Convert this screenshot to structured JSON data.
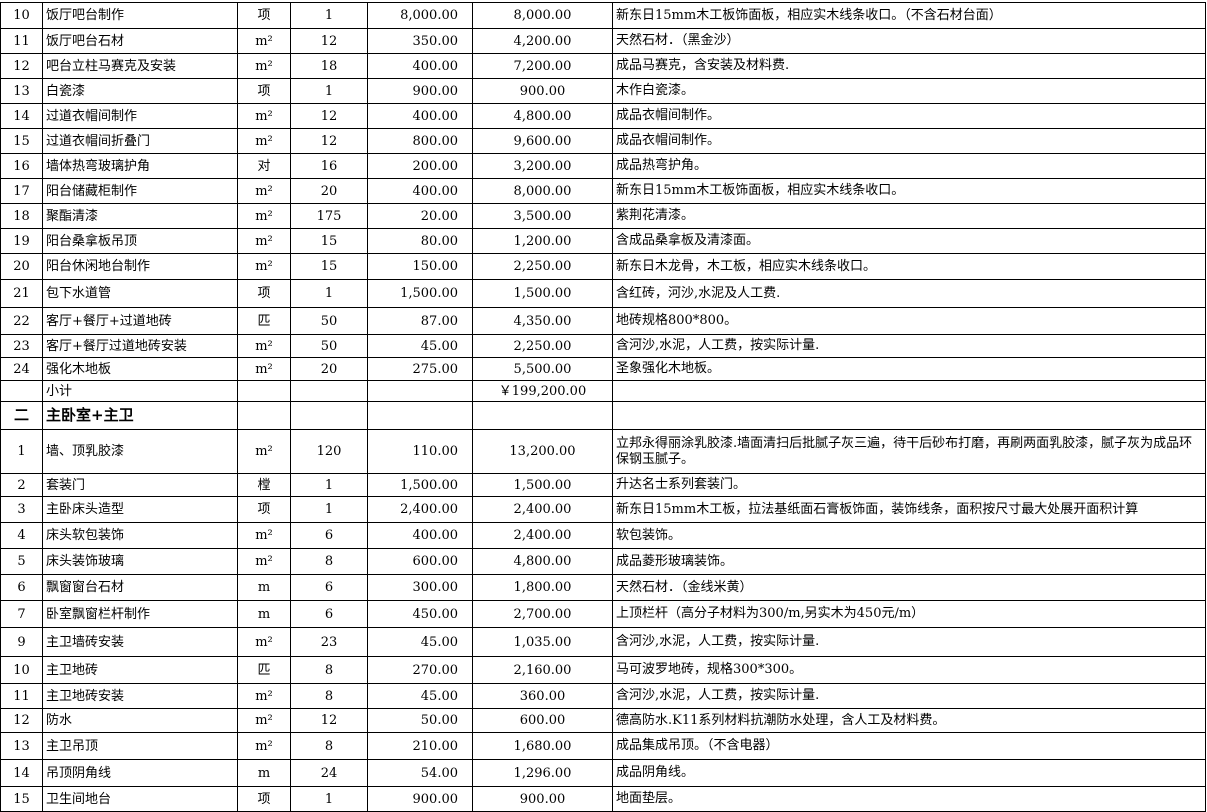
{
  "rows": [
    {
      "no": "10",
      "name": "饭厅吧台制作",
      "unit": "项",
      "qty": "1",
      "price": "8,000.00",
      "total": "8,000.00",
      "remark": "新东日15mm木工板饰面板，相应实木线条收口。（不含石材台面）"
    },
    {
      "no": "11",
      "name": "饭厅吧台石材",
      "unit": "m²",
      "qty": "12",
      "price": "350.00",
      "total": "4,200.00",
      "remark": "天然石材．（黑金沙）"
    },
    {
      "no": "12",
      "name": "吧台立柱马赛克及安装",
      "unit": "m²",
      "qty": "18",
      "price": "400.00",
      "total": "7,200.00",
      "remark": "成品马赛克，含安装及材料费."
    },
    {
      "no": "13",
      "name": "白瓷漆",
      "unit": "项",
      "qty": "1",
      "price": "900.00",
      "total": "900.00",
      "remark": "木作白瓷漆。"
    },
    {
      "no": "14",
      "name": "过道衣帽间制作",
      "unit": "m²",
      "qty": "12",
      "price": "400.00",
      "total": "4,800.00",
      "remark": "成品衣帽间制作。"
    },
    {
      "no": "15",
      "name": "过道衣帽间折叠门",
      "unit": "m²",
      "qty": "12",
      "price": "800.00",
      "total": "9,600.00",
      "remark": "成品衣帽间制作。"
    },
    {
      "no": "16",
      "name": "墙体热弯玻璃护角",
      "unit": "对",
      "qty": "16",
      "price": "200.00",
      "total": "3,200.00",
      "remark": "成品热弯护角。"
    },
    {
      "no": "17",
      "name": "阳台储藏柜制作",
      "unit": "m²",
      "qty": "20",
      "price": "400.00",
      "total": "8,000.00",
      "remark": "新东日15mm木工板饰面板，相应实木线条收口。"
    },
    {
      "no": "18",
      "name": "聚酯清漆",
      "unit": "m²",
      "qty": "175",
      "price": "20.00",
      "total": "3,500.00",
      "remark": "紫荆花清漆。"
    },
    {
      "no": "19",
      "name": "阳台桑拿板吊顶",
      "unit": "m²",
      "qty": "15",
      "price": "80.00",
      "total": "1,200.00",
      "remark": "含成品桑拿板及清漆面。"
    },
    {
      "no": "20",
      "name": "阳台休闲地台制作",
      "unit": "m²",
      "qty": "15",
      "price": "150.00",
      "total": "2,250.00",
      "remark": "新东日木龙骨，木工板，相应实木线条收口。"
    },
    {
      "no": "21",
      "name": "包下水道管",
      "unit": "项",
      "qty": "1",
      "price": "1,500.00",
      "total": "1,500.00",
      "remark": "含红砖，河沙,水泥及人工费."
    },
    {
      "no": "22",
      "name": "客厅+餐厅+过道地砖",
      "unit": "匹",
      "qty": "50",
      "price": "87.00",
      "total": "4,350.00",
      "remark": "地砖规格800*800。"
    },
    {
      "no": "23",
      "name": "客厅+餐厅过道地砖安装",
      "unit": "m²",
      "qty": "50",
      "price": "45.00",
      "total": "2,250.00",
      "remark": "含河沙,水泥，人工费，按实际计量."
    },
    {
      "no": "24",
      "name": "强化木地板",
      "unit": "m²",
      "qty": "20",
      "price": "275.00",
      "total": "5,500.00",
      "remark": "圣象强化木地板。"
    },
    {
      "no": "",
      "name": "小计",
      "unit": "",
      "qty": "",
      "price": "",
      "total": "￥199,200.00",
      "remark": ""
    },
    {
      "no": "二",
      "name": "主卧室+主卫",
      "unit": "",
      "qty": "",
      "price": "",
      "total": "",
      "remark": "",
      "section": true
    },
    {
      "no": "1",
      "name": "墙、顶乳胶漆",
      "unit": "m²",
      "qty": "120",
      "price": "110.00",
      "total": "13,200.00",
      "remark": "立邦永得丽涂乳胶漆.墙面清扫后批腻子灰三遍，待干后砂布打磨，再刷两面乳胶漆，腻子灰为成品环保钢玉腻子。"
    },
    {
      "no": "2",
      "name": "套装门",
      "unit": "樘",
      "qty": "1",
      "price": "1,500.00",
      "total": "1,500.00",
      "remark": "升达名士系列套装门。"
    },
    {
      "no": "3",
      "name": "主卧床头造型",
      "unit": "项",
      "qty": "1",
      "price": "2,400.00",
      "total": "2,400.00",
      "remark": "新东日15mm木工板，拉法基纸面石膏板饰面，装饰线条，面积按尺寸最大处展开面积计算"
    },
    {
      "no": "4",
      "name": "床头软包装饰",
      "unit": "m²",
      "qty": "6",
      "price": "400.00",
      "total": "2,400.00",
      "remark": "软包装饰。"
    },
    {
      "no": "5",
      "name": "床头装饰玻璃",
      "unit": "m²",
      "qty": "8",
      "price": "600.00",
      "total": "4,800.00",
      "remark": "成品菱形玻璃装饰。"
    },
    {
      "no": "6",
      "name": "飘窗窗台石材",
      "unit": "m",
      "qty": "6",
      "price": "300.00",
      "total": "1,800.00",
      "remark": "天然石材．（金线米黄）"
    },
    {
      "no": "7",
      "name": "卧室飘窗栏杆制作",
      "unit": "m",
      "qty": "6",
      "price": "450.00",
      "total": "2,700.00",
      "remark": "上顶栏杆（高分子材料为300/m,另实木为450元/m）"
    },
    {
      "no": "9",
      "name": "主卫墙砖安装",
      "unit": "m²",
      "qty": "23",
      "price": "45.00",
      "total": "1,035.00",
      "remark": "含河沙,水泥，人工费，按实际计量."
    },
    {
      "no": "10",
      "name": "主卫地砖",
      "unit": "匹",
      "qty": "8",
      "price": "270.00",
      "total": "2,160.00",
      "remark": "马可波罗地砖，规格300*300。"
    },
    {
      "no": "11",
      "name": "主卫地砖安装",
      "unit": "m²",
      "qty": "8",
      "price": "45.00",
      "total": "360.00",
      "remark": "含河沙,水泥，人工费，按实际计量."
    },
    {
      "no": "12",
      "name": "防水",
      "unit": "m²",
      "qty": "12",
      "price": "50.00",
      "total": "600.00",
      "remark": "德高防水.K11系列材料抗潮防水处理，含人工及材料费。"
    },
    {
      "no": "13",
      "name": "主卫吊顶",
      "unit": "m²",
      "qty": "8",
      "price": "210.00",
      "total": "1,680.00",
      "remark": "成品集成吊顶。（不含电器）"
    },
    {
      "no": "14",
      "name": "吊顶阴角线",
      "unit": "m",
      "qty": "24",
      "price": "54.00",
      "total": "1,296.00",
      "remark": "成品阴角线。"
    },
    {
      "no": "15",
      "name": "卫生间地台",
      "unit": "项",
      "qty": "1",
      "price": "900.00",
      "total": "900.00",
      "remark": "地面垫层。"
    }
  ]
}
